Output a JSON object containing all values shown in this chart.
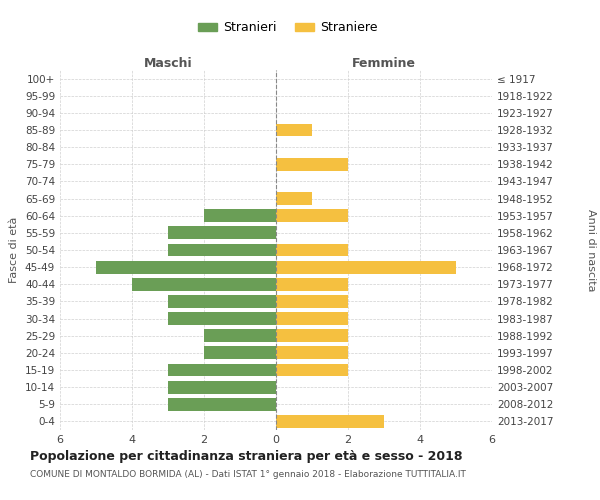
{
  "age_groups": [
    "100+",
    "95-99",
    "90-94",
    "85-89",
    "80-84",
    "75-79",
    "70-74",
    "65-69",
    "60-64",
    "55-59",
    "50-54",
    "45-49",
    "40-44",
    "35-39",
    "30-34",
    "25-29",
    "20-24",
    "15-19",
    "10-14",
    "5-9",
    "0-4"
  ],
  "birth_years": [
    "≤ 1917",
    "1918-1922",
    "1923-1927",
    "1928-1932",
    "1933-1937",
    "1938-1942",
    "1943-1947",
    "1948-1952",
    "1953-1957",
    "1958-1962",
    "1963-1967",
    "1968-1972",
    "1973-1977",
    "1978-1982",
    "1983-1987",
    "1988-1992",
    "1993-1997",
    "1998-2002",
    "2003-2007",
    "2008-2012",
    "2013-2017"
  ],
  "maschi": [
    0,
    0,
    0,
    0,
    0,
    0,
    0,
    0,
    2,
    3,
    3,
    5,
    4,
    3,
    3,
    2,
    2,
    3,
    3,
    3,
    0
  ],
  "femmine": [
    0,
    0,
    0,
    1,
    0,
    2,
    0,
    1,
    2,
    0,
    2,
    5,
    2,
    2,
    2,
    2,
    2,
    2,
    0,
    0,
    3
  ],
  "maschi_color": "#6a9e56",
  "femmine_color": "#f5c040",
  "title": "Popolazione per cittadinanza straniera per età e sesso - 2018",
  "subtitle": "COMUNE DI MONTALDO BORMIDA (AL) - Dati ISTAT 1° gennaio 2018 - Elaborazione TUTTITALIA.IT",
  "ylabel_left": "Fasce di età",
  "ylabel_right": "Anni di nascita",
  "xlabel_left": "Maschi",
  "xlabel_right": "Femmine",
  "legend_stranieri": "Stranieri",
  "legend_straniere": "Straniere",
  "xlim": 6,
  "background_color": "#ffffff",
  "grid_color": "#d0d0d0"
}
